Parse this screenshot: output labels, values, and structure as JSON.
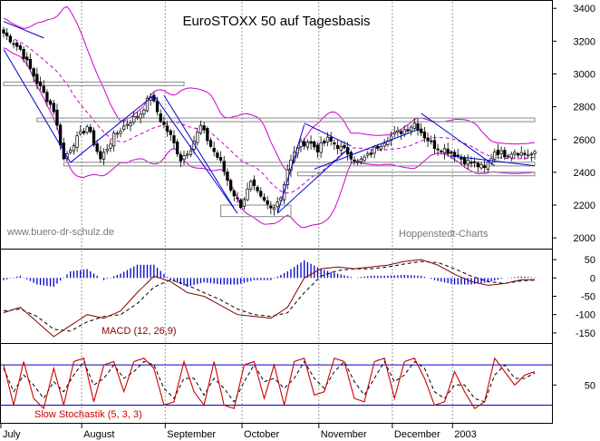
{
  "chart_data": {
    "type": "candlestick",
    "title": "EuroSTOXX 50 auf Tagesbasis",
    "watermark_left": "www.buero-dr-schulz.de",
    "watermark_right": "Hoppenstedt-Charts",
    "x_month_labels": [
      "July",
      "August",
      "September",
      "October",
      "November",
      "December",
      "2003"
    ],
    "colors": {
      "bollinger": "#cc00cc",
      "moving_average": "#cc00cc",
      "trend_lines": "#0000cc",
      "channel_lines": "#888888",
      "macd_line": "#880000",
      "signal_line": "#000000",
      "histogram": "#0000cc",
      "stochastic_k": "#cc0000",
      "stochastic_d": "#000000",
      "stochastic_levels": "#0000cc"
    },
    "price_panel": {
      "y_ticks": [
        2000,
        2200,
        2400,
        2600,
        2800,
        3000,
        3200,
        3400
      ],
      "ylim": [
        1940,
        3440
      ],
      "close_keypoints": [
        [
          0,
          3250
        ],
        [
          5,
          3150
        ],
        [
          10,
          2950
        ],
        [
          15,
          2780
        ],
        [
          18,
          2480
        ],
        [
          21,
          2580
        ],
        [
          25,
          2680
        ],
        [
          29,
          2480
        ],
        [
          33,
          2620
        ],
        [
          37,
          2700
        ],
        [
          41,
          2760
        ],
        [
          44,
          2870
        ],
        [
          47,
          2720
        ],
        [
          50,
          2620
        ],
        [
          53,
          2480
        ],
        [
          56,
          2550
        ],
        [
          59,
          2680
        ],
        [
          62,
          2560
        ],
        [
          65,
          2460
        ],
        [
          68,
          2300
        ],
        [
          71,
          2200
        ],
        [
          74,
          2330
        ],
        [
          77,
          2240
        ],
        [
          80,
          2180
        ],
        [
          83,
          2250
        ],
        [
          85,
          2420
        ],
        [
          88,
          2560
        ],
        [
          91,
          2590
        ],
        [
          94,
          2540
        ],
        [
          97,
          2600
        ],
        [
          100,
          2560
        ],
        [
          103,
          2520
        ],
        [
          106,
          2460
        ],
        [
          109,
          2500
        ],
        [
          112,
          2560
        ],
        [
          115,
          2610
        ],
        [
          118,
          2640
        ],
        [
          121,
          2670
        ],
        [
          123,
          2700
        ],
        [
          126,
          2620
        ],
        [
          129,
          2560
        ],
        [
          132,
          2540
        ],
        [
          135,
          2510
        ],
        [
          138,
          2470
        ],
        [
          141,
          2450
        ],
        [
          144,
          2420
        ],
        [
          147,
          2530
        ],
        [
          150,
          2510
        ],
        [
          153,
          2530
        ],
        [
          156,
          2510
        ]
      ],
      "horizontal_levels": [
        {
          "value": 2940,
          "from": 0,
          "to": 54
        },
        {
          "value": 2720,
          "from": 10,
          "to": 159
        },
        {
          "value": 2450,
          "from": 18,
          "to": 159
        },
        {
          "value": 2390,
          "from": 88,
          "to": 159
        }
      ],
      "support_box": {
        "x0": 65,
        "x1": 86,
        "y0": 2130,
        "y1": 2200
      },
      "trend_lines": [
        [
          [
            0,
            3320
          ],
          [
            12,
            3220
          ]
        ],
        [
          [
            0,
            3150
          ],
          [
            20,
            2460
          ]
        ],
        [
          [
            20,
            2460
          ],
          [
            45,
            2870
          ]
        ],
        [
          [
            45,
            2870
          ],
          [
            70,
            2150
          ]
        ],
        [
          [
            48,
            2870
          ],
          [
            69,
            2180
          ]
        ],
        [
          [
            82,
            2150
          ],
          [
            90,
            2690
          ]
        ],
        [
          [
            82,
            2150
          ],
          [
            103,
            2540
          ]
        ],
        [
          [
            90,
            2700
          ],
          [
            104,
            2560
          ]
        ],
        [
          [
            93,
            2420
          ],
          [
            124,
            2660
          ]
        ],
        [
          [
            125,
            2760
          ],
          [
            147,
            2440
          ]
        ],
        [
          [
            134,
            2500
          ],
          [
            159,
            2440
          ]
        ]
      ]
    },
    "macd_panel": {
      "label": "MACD (12, 26,9)",
      "y_ticks": [
        -150,
        -100,
        -50,
        0,
        50
      ],
      "ylim": [
        -175,
        75
      ],
      "macd_keypoints": [
        [
          0,
          -95
        ],
        [
          5,
          -80
        ],
        [
          10,
          -120
        ],
        [
          15,
          -160
        ],
        [
          20,
          -130
        ],
        [
          25,
          -100
        ],
        [
          30,
          -110
        ],
        [
          35,
          -90
        ],
        [
          40,
          -40
        ],
        [
          45,
          5
        ],
        [
          50,
          -10
        ],
        [
          55,
          -40
        ],
        [
          60,
          -50
        ],
        [
          65,
          -75
        ],
        [
          70,
          -100
        ],
        [
          75,
          -105
        ],
        [
          80,
          -110
        ],
        [
          85,
          -80
        ],
        [
          90,
          0
        ],
        [
          95,
          25
        ],
        [
          100,
          30
        ],
        [
          105,
          25
        ],
        [
          110,
          30
        ],
        [
          115,
          35
        ],
        [
          120,
          45
        ],
        [
          125,
          50
        ],
        [
          130,
          35
        ],
        [
          135,
          10
        ],
        [
          140,
          -10
        ],
        [
          145,
          -20
        ],
        [
          150,
          -15
        ],
        [
          155,
          -5
        ],
        [
          159,
          -5
        ]
      ],
      "signal_keypoints": [
        [
          0,
          -90
        ],
        [
          5,
          -85
        ],
        [
          10,
          -105
        ],
        [
          15,
          -140
        ],
        [
          20,
          -145
        ],
        [
          25,
          -120
        ],
        [
          30,
          -105
        ],
        [
          35,
          -100
        ],
        [
          40,
          -70
        ],
        [
          45,
          -25
        ],
        [
          50,
          -5
        ],
        [
          55,
          -20
        ],
        [
          60,
          -40
        ],
        [
          65,
          -60
        ],
        [
          70,
          -85
        ],
        [
          75,
          -100
        ],
        [
          80,
          -105
        ],
        [
          85,
          -95
        ],
        [
          90,
          -40
        ],
        [
          95,
          5
        ],
        [
          100,
          20
        ],
        [
          105,
          25
        ],
        [
          110,
          25
        ],
        [
          115,
          30
        ],
        [
          120,
          38
        ],
        [
          125,
          45
        ],
        [
          130,
          42
        ],
        [
          135,
          25
        ],
        [
          140,
          5
        ],
        [
          145,
          -10
        ],
        [
          150,
          -15
        ],
        [
          155,
          -8
        ],
        [
          159,
          -6
        ]
      ]
    },
    "stoch_panel": {
      "label": "Slow Stochastik (5, 3, 3)",
      "y_ticks": [
        50
      ],
      "ylim": [
        -5,
        110
      ],
      "levels": [
        80,
        20
      ],
      "k_keypoints": [
        [
          0,
          80
        ],
        [
          3,
          20
        ],
        [
          6,
          85
        ],
        [
          9,
          30
        ],
        [
          12,
          15
        ],
        [
          15,
          75
        ],
        [
          18,
          20
        ],
        [
          21,
          85
        ],
        [
          24,
          90
        ],
        [
          27,
          25
        ],
        [
          30,
          80
        ],
        [
          33,
          85
        ],
        [
          36,
          40
        ],
        [
          39,
          85
        ],
        [
          42,
          90
        ],
        [
          45,
          75
        ],
        [
          48,
          20
        ],
        [
          51,
          25
        ],
        [
          54,
          85
        ],
        [
          57,
          40
        ],
        [
          60,
          20
        ],
        [
          63,
          85
        ],
        [
          66,
          20
        ],
        [
          69,
          15
        ],
        [
          72,
          80
        ],
        [
          75,
          85
        ],
        [
          78,
          30
        ],
        [
          81,
          80
        ],
        [
          84,
          20
        ],
        [
          87,
          85
        ],
        [
          90,
          90
        ],
        [
          93,
          35
        ],
        [
          96,
          40
        ],
        [
          99,
          90
        ],
        [
          102,
          85
        ],
        [
          105,
          30
        ],
        [
          108,
          25
        ],
        [
          111,
          85
        ],
        [
          114,
          90
        ],
        [
          117,
          30
        ],
        [
          120,
          85
        ],
        [
          123,
          90
        ],
        [
          126,
          60
        ],
        [
          129,
          20
        ],
        [
          132,
          25
        ],
        [
          135,
          70
        ],
        [
          138,
          40
        ],
        [
          141,
          15
        ],
        [
          144,
          25
        ],
        [
          147,
          90
        ],
        [
          150,
          70
        ],
        [
          153,
          50
        ],
        [
          156,
          65
        ],
        [
          159,
          70
        ]
      ],
      "d_keypoints": [
        [
          0,
          75
        ],
        [
          3,
          40
        ],
        [
          6,
          65
        ],
        [
          9,
          50
        ],
        [
          12,
          30
        ],
        [
          15,
          55
        ],
        [
          18,
          40
        ],
        [
          21,
          65
        ],
        [
          24,
          85
        ],
        [
          27,
          50
        ],
        [
          30,
          60
        ],
        [
          33,
          80
        ],
        [
          36,
          60
        ],
        [
          39,
          70
        ],
        [
          42,
          85
        ],
        [
          45,
          80
        ],
        [
          48,
          45
        ],
        [
          51,
          30
        ],
        [
          54,
          60
        ],
        [
          57,
          60
        ],
        [
          60,
          35
        ],
        [
          63,
          60
        ],
        [
          66,
          45
        ],
        [
          69,
          25
        ],
        [
          72,
          55
        ],
        [
          75,
          80
        ],
        [
          78,
          55
        ],
        [
          81,
          60
        ],
        [
          84,
          45
        ],
        [
          87,
          60
        ],
        [
          90,
          85
        ],
        [
          93,
          60
        ],
        [
          96,
          45
        ],
        [
          99,
          70
        ],
        [
          102,
          85
        ],
        [
          105,
          55
        ],
        [
          108,
          35
        ],
        [
          111,
          60
        ],
        [
          114,
          85
        ],
        [
          117,
          55
        ],
        [
          120,
          65
        ],
        [
          123,
          85
        ],
        [
          126,
          75
        ],
        [
          129,
          40
        ],
        [
          132,
          30
        ],
        [
          135,
          50
        ],
        [
          138,
          50
        ],
        [
          141,
          30
        ],
        [
          144,
          25
        ],
        [
          147,
          65
        ],
        [
          150,
          80
        ],
        [
          153,
          60
        ],
        [
          156,
          60
        ],
        [
          159,
          68
        ]
      ]
    }
  }
}
